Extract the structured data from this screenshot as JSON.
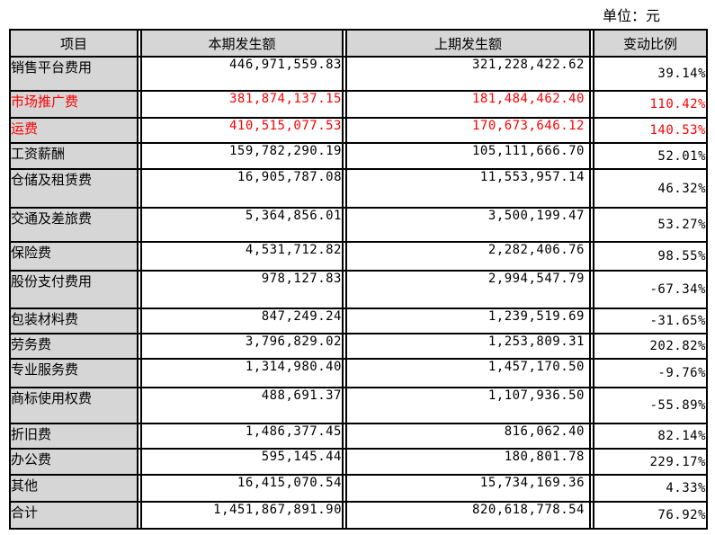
{
  "unit_label": "单位：元",
  "colors": {
    "highlight_red": "#ff0000",
    "header_grey": "#d6d6d6",
    "grid_black": "#000000"
  },
  "table": {
    "headers": [
      "项目",
      "本期发生额",
      "上期发生额",
      "变动比例"
    ],
    "rows": [
      {
        "item": "销售平台费用",
        "current": "446,971,559.83",
        "prior": "321,228,422.62",
        "change": "39.14%",
        "red": false
      },
      {
        "item": "市场推广费",
        "current": "381,874,137.15",
        "prior": "181,484,462.40",
        "change": "110.42%",
        "red": true
      },
      {
        "item": "运费",
        "current": "410,515,077.53",
        "prior": "170,673,646.12",
        "change": "140.53%",
        "red": true
      },
      {
        "item": "工资薪酬",
        "current": "159,782,290.19",
        "prior": "105,111,666.70",
        "change": "52.01%",
        "red": false
      },
      {
        "item": "仓储及租赁费",
        "current": "16,905,787.08",
        "prior": "11,553,957.14",
        "change": "46.32%",
        "red": false
      },
      {
        "item": "交通及差旅费",
        "current": "5,364,856.01",
        "prior": "3,500,199.47",
        "change": "53.27%",
        "red": false
      },
      {
        "item": "保险费",
        "current": "4,531,712.82",
        "prior": "2,282,406.76",
        "change": "98.55%",
        "red": false
      },
      {
        "item": "股份支付费用",
        "current": "978,127.83",
        "prior": "2,994,547.79",
        "change": "-67.34%",
        "red": false
      },
      {
        "item": "包装材料费",
        "current": "847,249.24",
        "prior": "1,239,519.69",
        "change": "-31.65%",
        "red": false
      },
      {
        "item": "劳务费",
        "current": "3,796,829.02",
        "prior": "1,253,809.31",
        "change": "202.82%",
        "red": false
      },
      {
        "item": "专业服务费",
        "current": "1,314,980.40",
        "prior": "1,457,170.50",
        "change": "-9.76%",
        "red": false
      },
      {
        "item": "商标使用权费",
        "current": "488,691.37",
        "prior": "1,107,936.50",
        "change": "-55.89%",
        "red": false
      },
      {
        "item": "折旧费",
        "current": "1,486,377.45",
        "prior": "816,062.40",
        "change": "82.14%",
        "red": false
      },
      {
        "item": "办公费",
        "current": "595,145.44",
        "prior": "180,801.78",
        "change": "229.17%",
        "red": false
      },
      {
        "item": "其他",
        "current": "16,415,070.54",
        "prior": "15,734,169.36",
        "change": "4.33%",
        "red": false
      },
      {
        "item": "合计",
        "current": "1,451,867,891.90",
        "prior": "820,618,778.54",
        "change": "76.92%",
        "red": false
      }
    ]
  }
}
